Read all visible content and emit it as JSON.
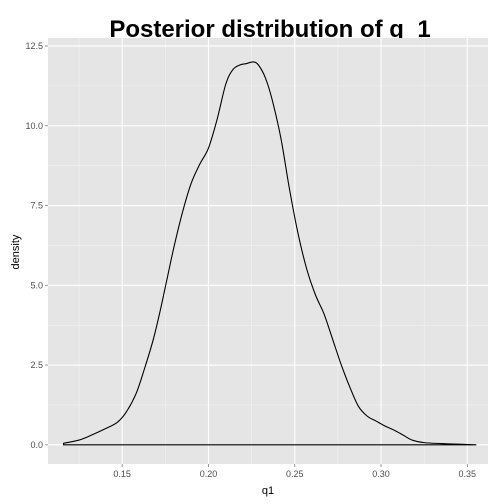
{
  "chart_data": {
    "type": "line",
    "title": "Posterior distribution of q_1",
    "xlabel": "q1",
    "ylabel": "density",
    "xlim": [
      0.107,
      0.362
    ],
    "ylim": [
      -0.6,
      12.75
    ],
    "x_ticks": [
      0.15,
      0.2,
      0.25,
      0.3,
      0.35
    ],
    "x_tick_labels": [
      "0.15",
      "0.20",
      "0.25",
      "0.30",
      "0.35"
    ],
    "y_ticks": [
      0.0,
      2.5,
      5.0,
      7.5,
      10.0,
      12.5
    ],
    "y_tick_labels": [
      "0.0",
      "2.5",
      "5.0",
      "7.5",
      "10.0",
      "12.5"
    ],
    "grid": true,
    "background": "#e5e5e5",
    "grid_major_color": "#ffffff",
    "grid_minor_color": "#f2f2f2",
    "line_color": "#000000",
    "series": [
      {
        "x": [
          0.116,
          0.125,
          0.132,
          0.14,
          0.147,
          0.152,
          0.158,
          0.163,
          0.168,
          0.172,
          0.176,
          0.18,
          0.185,
          0.19,
          0.195,
          0.2,
          0.205,
          0.21,
          0.214,
          0.218,
          0.222,
          0.226,
          0.229,
          0.233,
          0.237,
          0.242,
          0.247,
          0.252,
          0.257,
          0.262,
          0.267,
          0.272,
          0.277,
          0.282,
          0.287,
          0.292,
          0.297,
          0.302,
          0.308,
          0.313,
          0.318,
          0.325,
          0.335,
          0.345,
          0.355
        ],
        "y": [
          0.05,
          0.15,
          0.3,
          0.5,
          0.7,
          1.0,
          1.6,
          2.4,
          3.3,
          4.2,
          5.2,
          6.2,
          7.3,
          8.2,
          8.8,
          9.3,
          10.2,
          11.3,
          11.75,
          11.9,
          11.95,
          12.0,
          11.9,
          11.5,
          10.8,
          9.6,
          8.0,
          6.6,
          5.5,
          4.7,
          4.1,
          3.3,
          2.5,
          1.8,
          1.2,
          0.9,
          0.75,
          0.6,
          0.45,
          0.3,
          0.15,
          0.07,
          0.04,
          0.02,
          0.0
        ]
      }
    ]
  }
}
